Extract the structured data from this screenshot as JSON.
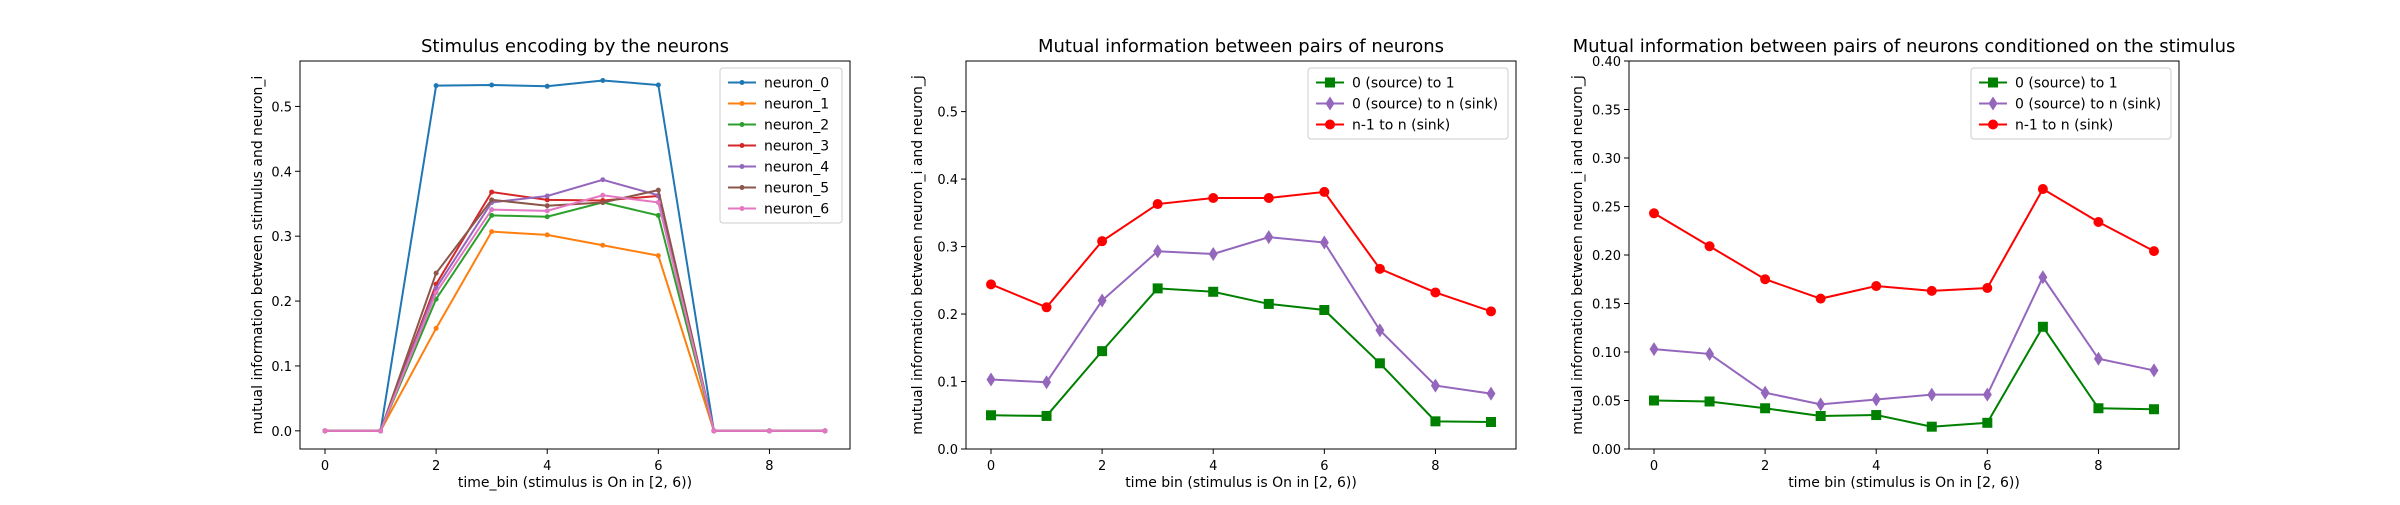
{
  "chart_data": [
    {
      "type": "line",
      "title": "Stimulus encoding by the neurons",
      "xlabel": "time_bin (stimulus is On in [2, 6))",
      "ylabel": "mutual information between stimulus and neuron_i",
      "x": [
        0,
        1,
        2,
        3,
        4,
        5,
        6,
        7,
        8,
        9
      ],
      "xlim": [
        -0.45,
        9.45
      ],
      "ylim": [
        -0.028,
        0.57
      ],
      "xticks": [
        0,
        2,
        4,
        6,
        8
      ],
      "yticks": [
        0.0,
        0.1,
        0.2,
        0.3,
        0.4,
        0.5
      ],
      "tick_format": "1",
      "legend_position": "upper right",
      "series": [
        {
          "name": "neuron_0",
          "color": "#1f77b4",
          "marker": "point",
          "values": [
            0,
            0,
            0.532,
            0.533,
            0.531,
            0.54,
            0.533,
            0,
            0,
            0
          ]
        },
        {
          "name": "neuron_1",
          "color": "#ff7f0e",
          "marker": "point",
          "values": [
            0,
            0,
            0.158,
            0.307,
            0.302,
            0.286,
            0.27,
            0,
            0,
            0
          ]
        },
        {
          "name": "neuron_2",
          "color": "#2ca02c",
          "marker": "point",
          "values": [
            0,
            0,
            0.203,
            0.332,
            0.33,
            0.352,
            0.332,
            0,
            0,
            0
          ]
        },
        {
          "name": "neuron_3",
          "color": "#d62728",
          "marker": "point",
          "values": [
            0,
            0,
            0.226,
            0.368,
            0.356,
            0.355,
            0.362,
            0,
            0,
            0
          ]
        },
        {
          "name": "neuron_4",
          "color": "#9467bd",
          "marker": "point",
          "values": [
            0,
            0,
            0.22,
            0.352,
            0.362,
            0.387,
            0.363,
            0,
            0,
            0
          ]
        },
        {
          "name": "neuron_5",
          "color": "#8c564b",
          "marker": "point",
          "values": [
            0,
            0,
            0.243,
            0.356,
            0.347,
            0.352,
            0.371,
            0,
            0,
            0
          ]
        },
        {
          "name": "neuron_6",
          "color": "#e377c2",
          "marker": "point",
          "values": [
            0,
            0,
            0.213,
            0.341,
            0.339,
            0.363,
            0.352,
            0,
            0,
            0
          ]
        }
      ]
    },
    {
      "type": "line",
      "title": "Mutual information between pairs of neurons",
      "xlabel": "time bin (stimulus is On in [2, 6))",
      "ylabel": "mutual information between neuron_i and neuron_j",
      "x": [
        0,
        1,
        2,
        3,
        4,
        5,
        6,
        7,
        8,
        9
      ],
      "xlim": [
        -0.45,
        9.45
      ],
      "ylim": [
        0.0,
        0.575
      ],
      "xticks": [
        0,
        2,
        4,
        6,
        8
      ],
      "yticks": [
        0.0,
        0.1,
        0.2,
        0.3,
        0.4,
        0.5
      ],
      "tick_format": "1",
      "legend_position": "upper right",
      "series": [
        {
          "name": "0 (source) to 1",
          "color": "#008000",
          "marker": "square",
          "values": [
            0.05,
            0.049,
            0.145,
            0.238,
            0.233,
            0.215,
            0.206,
            0.127,
            0.041,
            0.04
          ]
        },
        {
          "name": "0 (source) to n (sink)",
          "color": "#9467bd",
          "marker": "diamond",
          "values": [
            0.103,
            0.099,
            0.22,
            0.293,
            0.289,
            0.314,
            0.306,
            0.176,
            0.094,
            0.082
          ]
        },
        {
          "name": "n-1 to n (sink)",
          "color": "#ff0000",
          "marker": "circle",
          "values": [
            0.244,
            0.21,
            0.308,
            0.363,
            0.372,
            0.372,
            0.381,
            0.267,
            0.232,
            0.204
          ]
        }
      ]
    },
    {
      "type": "line",
      "title": "Mutual information between pairs of neurons conditioned on the stimulus",
      "xlabel": "time bin (stimulus is On in [2, 6))",
      "ylabel": "mutual information between neuron_i and neuron_j",
      "x": [
        0,
        1,
        2,
        3,
        4,
        5,
        6,
        7,
        8,
        9
      ],
      "xlim": [
        -0.45,
        9.45
      ],
      "ylim": [
        0.0,
        0.4
      ],
      "xticks": [
        0,
        2,
        4,
        6,
        8
      ],
      "yticks": [
        0.0,
        0.05,
        0.1,
        0.15,
        0.2,
        0.25,
        0.3,
        0.35,
        0.4
      ],
      "tick_format": "2",
      "legend_position": "upper right",
      "series": [
        {
          "name": "0 (source) to 1",
          "color": "#008000",
          "marker": "square",
          "values": [
            0.05,
            0.049,
            0.042,
            0.034,
            0.035,
            0.023,
            0.027,
            0.126,
            0.042,
            0.041
          ]
        },
        {
          "name": "0 (source) to n (sink)",
          "color": "#9467bd",
          "marker": "diamond",
          "values": [
            0.103,
            0.098,
            0.058,
            0.046,
            0.051,
            0.056,
            0.056,
            0.177,
            0.093,
            0.081
          ]
        },
        {
          "name": "n-1 to n (sink)",
          "color": "#ff0000",
          "marker": "circle",
          "values": [
            0.243,
            0.209,
            0.175,
            0.155,
            0.168,
            0.163,
            0.166,
            0.268,
            0.234,
            0.204
          ]
        }
      ]
    }
  ]
}
